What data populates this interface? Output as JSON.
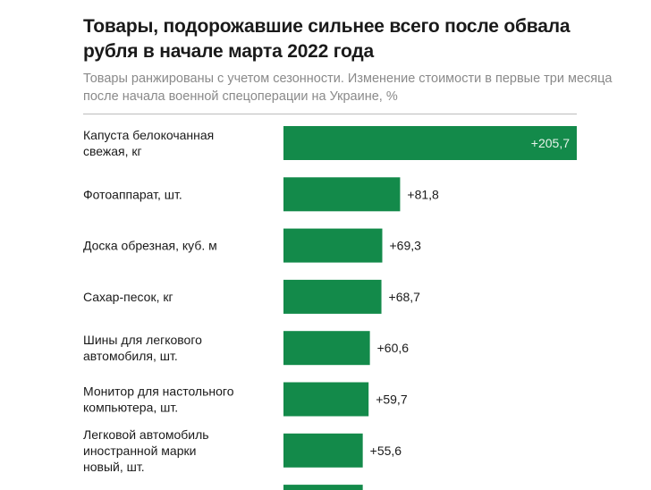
{
  "colors": {
    "bar": "#138a4a",
    "text": "#1a1a1a",
    "subtitle": "#8a8a8a"
  },
  "chart_data": {
    "type": "bar",
    "orientation": "horizontal",
    "title": "Товары, подорожавшие сильнее всего после обвала рубля в начале марта 2022 года",
    "subtitle": "Товары ранжированы с учетом сезонности. Изменение стоимости в первые три месяца после начала военной спецоперации на Украине, %",
    "categories": [
      [
        "Капуста белокочанная",
        "свежая, кг"
      ],
      [
        "Фотоаппарат, шт."
      ],
      [
        "Доска обрезная, куб. м"
      ],
      [
        "Сахар-песок, кг"
      ],
      [
        "Шины для легкового",
        "автомобиля, шт."
      ],
      [
        "Монитор для настольного",
        "компьютера, шт."
      ],
      [
        "Легковой автомобиль",
        "иностранной марки",
        "новый, шт."
      ]
    ],
    "values": [
      205.7,
      81.8,
      69.3,
      68.7,
      60.6,
      59.7,
      55.6
    ],
    "value_labels": [
      "+205,7",
      "+81,8",
      "+69,3",
      "+68,7",
      "+60,6",
      "+59,7",
      "+55,6"
    ],
    "xlim": [
      0,
      205.7
    ],
    "grid": false,
    "legend": "none"
  }
}
